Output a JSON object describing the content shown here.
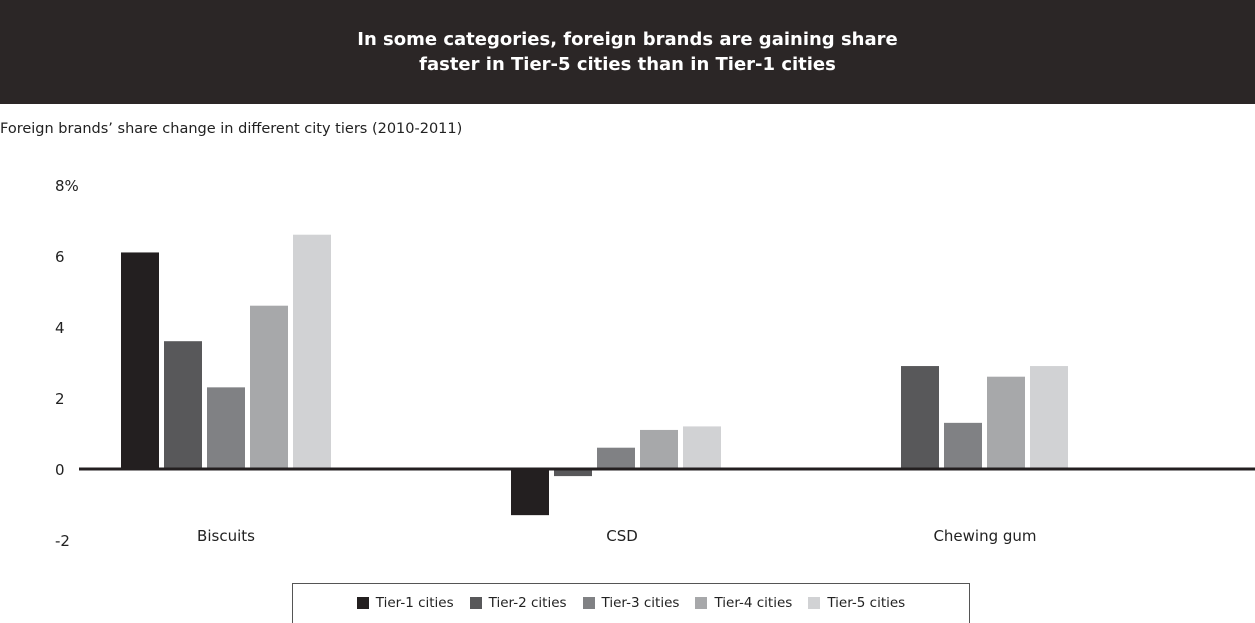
{
  "header": {
    "title_line1": "In some categories, foreign brands are gaining share",
    "title_line2": "faster in Tier-5 cities than in Tier-1 cities"
  },
  "subtitle": "Foreign brands’ share change in different city tiers (2010-2011)",
  "chart_data": {
    "type": "bar",
    "title": "In some categories, foreign brands are gaining share faster in Tier-5 cities than in Tier-1 cities",
    "subtitle": "Foreign brands’ share change in different city tiers (2010-2011)",
    "categories": [
      "Biscuits",
      "CSD",
      "Chewing gum"
    ],
    "series": [
      {
        "name": "Tier-1 cities",
        "color": "#231f20",
        "values": [
          6.1,
          -1.3,
          null
        ]
      },
      {
        "name": "Tier-2 cities",
        "color": "#58585a",
        "values": [
          3.6,
          -0.2,
          2.9
        ]
      },
      {
        "name": "Tier-3 cities",
        "color": "#808184",
        "values": [
          2.3,
          0.6,
          1.3
        ]
      },
      {
        "name": "Tier-4 cities",
        "color": "#a7a8aa",
        "values": [
          4.6,
          1.1,
          2.6
        ]
      },
      {
        "name": "Tier-5 cities",
        "color": "#d1d2d4",
        "values": [
          6.6,
          1.2,
          2.9
        ]
      }
    ],
    "yticks": [
      "8%",
      "6",
      "4",
      "2",
      "0",
      "-2"
    ],
    "ytick_values": [
      8,
      6,
      4,
      2,
      0,
      -2
    ],
    "ylim": [
      -2,
      8
    ],
    "xlabel": "",
    "ylabel": "",
    "grid": false,
    "legend_position": "bottom"
  }
}
